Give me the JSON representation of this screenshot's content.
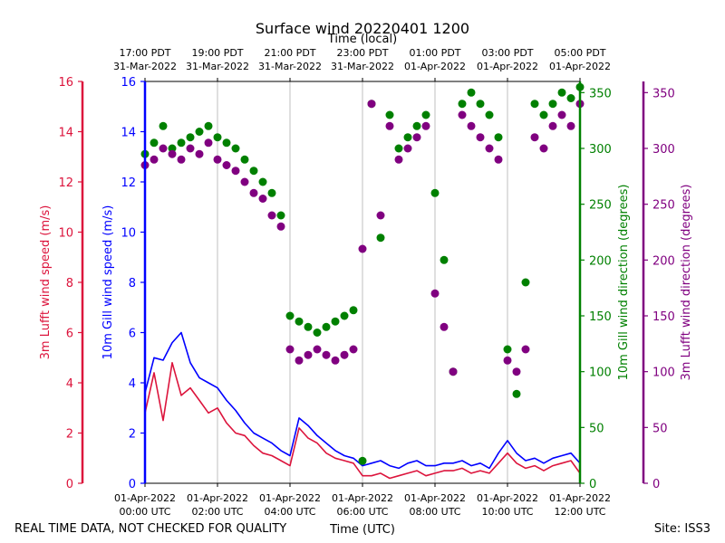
{
  "chart_data": {
    "type": "line",
    "title": "Surface wind 20220401 1200",
    "top_axis_label": "Time (local)",
    "xlabel": "Time (UTC)",
    "footer_left": "REAL TIME DATA, NOT CHECKED FOR QUALITY",
    "footer_right": "Site: ISS3",
    "x_range_hours": [
      0,
      12
    ],
    "x_ticks_utc": [
      {
        "h": 0,
        "line1": "01-Apr-2022",
        "line2": "00:00 UTC"
      },
      {
        "h": 2,
        "line1": "01-Apr-2022",
        "line2": "02:00 UTC"
      },
      {
        "h": 4,
        "line1": "01-Apr-2022",
        "line2": "04:00 UTC"
      },
      {
        "h": 6,
        "line1": "01-Apr-2022",
        "line2": "06:00 UTC"
      },
      {
        "h": 8,
        "line1": "01-Apr-2022",
        "line2": "08:00 UTC"
      },
      {
        "h": 10,
        "line1": "01-Apr-2022",
        "line2": "10:00 UTC"
      },
      {
        "h": 12,
        "line1": "01-Apr-2022",
        "line2": "12:00 UTC"
      }
    ],
    "x_ticks_local": [
      {
        "h": 0,
        "line1": "17:00 PDT",
        "line2": "31-Mar-2022"
      },
      {
        "h": 2,
        "line1": "19:00 PDT",
        "line2": "31-Mar-2022"
      },
      {
        "h": 4,
        "line1": "21:00 PDT",
        "line2": "31-Mar-2022"
      },
      {
        "h": 6,
        "line1": "23:00 PDT",
        "line2": "31-Mar-2022"
      },
      {
        "h": 8,
        "line1": "01:00 PDT",
        "line2": "01-Apr-2022"
      },
      {
        "h": 10,
        "line1": "03:00 PDT",
        "line2": "01-Apr-2022"
      },
      {
        "h": 12,
        "line1": "05:00 PDT",
        "line2": "01-Apr-2022"
      }
    ],
    "axes": {
      "lufft_speed": {
        "label": "3m Lufft wind speed (m/s)",
        "ylim": [
          0,
          16
        ],
        "ticks": [
          0,
          2,
          4,
          6,
          8,
          10,
          12,
          14,
          16
        ],
        "color": "#dc143c"
      },
      "gill_speed": {
        "label": "10m Gill wind speed (m/s)",
        "ylim": [
          0,
          16
        ],
        "ticks": [
          0,
          2,
          4,
          6,
          8,
          10,
          12,
          14,
          16
        ],
        "color": "#0000ff"
      },
      "gill_direction": {
        "label": "10m Gill wind direction (degrees)",
        "ylim": [
          0,
          360
        ],
        "ticks": [
          0,
          50,
          100,
          150,
          200,
          250,
          300,
          350
        ],
        "color": "#008000"
      },
      "lufft_direction": {
        "label": "3m Lufft wind direction (degrees)",
        "ylim": [
          0,
          360
        ],
        "ticks": [
          0,
          50,
          100,
          150,
          200,
          250,
          300,
          350
        ],
        "color": "#800080"
      }
    },
    "series": [
      {
        "name": "10m Gill wind speed",
        "kind": "line",
        "axis": "gill_speed",
        "color": "#0000ff",
        "x": [
          0,
          0.25,
          0.5,
          0.75,
          1,
          1.25,
          1.5,
          1.75,
          2,
          2.25,
          2.5,
          2.75,
          3,
          3.25,
          3.5,
          3.75,
          4,
          4.25,
          4.5,
          4.75,
          5,
          5.25,
          5.5,
          5.75,
          6,
          6.25,
          6.5,
          6.75,
          7,
          7.25,
          7.5,
          7.75,
          8,
          8.25,
          8.5,
          8.75,
          9,
          9.25,
          9.5,
          9.75,
          10,
          10.25,
          10.5,
          10.75,
          11,
          11.25,
          11.5,
          11.75,
          12
        ],
        "y": [
          3.6,
          5.0,
          4.9,
          5.6,
          6.0,
          4.8,
          4.2,
          4.0,
          3.8,
          3.3,
          2.9,
          2.4,
          2.0,
          1.8,
          1.6,
          1.3,
          1.1,
          2.6,
          2.3,
          1.9,
          1.6,
          1.3,
          1.1,
          1.0,
          0.7,
          0.8,
          0.9,
          0.7,
          0.6,
          0.8,
          0.9,
          0.7,
          0.7,
          0.8,
          0.8,
          0.9,
          0.7,
          0.8,
          0.6,
          1.2,
          1.7,
          1.2,
          0.9,
          1.0,
          0.8,
          1.0,
          1.1,
          1.2,
          0.8
        ]
      },
      {
        "name": "3m Lufft wind speed",
        "kind": "line",
        "axis": "lufft_speed",
        "color": "#dc143c",
        "x": [
          0,
          0.25,
          0.5,
          0.75,
          1,
          1.25,
          1.5,
          1.75,
          2,
          2.25,
          2.5,
          2.75,
          3,
          3.25,
          3.5,
          3.75,
          4,
          4.25,
          4.5,
          4.75,
          5,
          5.25,
          5.5,
          5.75,
          6,
          6.25,
          6.5,
          6.75,
          7,
          7.25,
          7.5,
          7.75,
          8,
          8.25,
          8.5,
          8.75,
          9,
          9.25,
          9.5,
          9.75,
          10,
          10.25,
          10.5,
          10.75,
          11,
          11.25,
          11.5,
          11.75,
          12
        ],
        "y": [
          2.8,
          4.4,
          2.5,
          4.8,
          3.5,
          3.8,
          3.3,
          2.8,
          3.0,
          2.4,
          2.0,
          1.9,
          1.5,
          1.2,
          1.1,
          0.9,
          0.7,
          2.2,
          1.8,
          1.6,
          1.2,
          1.0,
          0.9,
          0.8,
          0.3,
          0.3,
          0.4,
          0.2,
          0.3,
          0.4,
          0.5,
          0.3,
          0.4,
          0.5,
          0.5,
          0.6,
          0.4,
          0.5,
          0.4,
          0.8,
          1.2,
          0.8,
          0.6,
          0.7,
          0.5,
          0.7,
          0.8,
          0.9,
          0.4
        ]
      },
      {
        "name": "10m Gill wind direction",
        "kind": "scatter",
        "axis": "gill_direction",
        "color": "#008000",
        "x": [
          0,
          0.25,
          0.5,
          0.75,
          1,
          1.25,
          1.5,
          1.75,
          2,
          2.25,
          2.5,
          2.75,
          3,
          3.25,
          3.5,
          3.75,
          4,
          4.25,
          4.5,
          4.75,
          5,
          5.25,
          5.5,
          5.75,
          6,
          6.25,
          6.5,
          6.75,
          7,
          7.25,
          7.5,
          7.75,
          8,
          8.25,
          8.5,
          8.75,
          9,
          9.25,
          9.5,
          9.75,
          10,
          10.25,
          10.5,
          10.75,
          11,
          11.25,
          11.5,
          11.75,
          12
        ],
        "y": [
          295,
          305,
          320,
          300,
          305,
          310,
          315,
          320,
          310,
          305,
          300,
          290,
          280,
          270,
          260,
          240,
          150,
          145,
          140,
          135,
          140,
          145,
          150,
          155,
          20,
          340,
          220,
          330,
          300,
          310,
          320,
          330,
          260,
          200,
          100,
          340,
          350,
          340,
          330,
          310,
          120,
          80,
          180,
          340,
          330,
          340,
          350,
          345,
          355
        ]
      },
      {
        "name": "3m Lufft wind direction",
        "kind": "scatter",
        "axis": "lufft_direction",
        "color": "#800080",
        "x": [
          0,
          0.25,
          0.5,
          0.75,
          1,
          1.25,
          1.5,
          1.75,
          2,
          2.25,
          2.5,
          2.75,
          3,
          3.25,
          3.5,
          3.75,
          4,
          4.25,
          4.5,
          4.75,
          5,
          5.25,
          5.5,
          5.75,
          6,
          6.25,
          6.5,
          6.75,
          7,
          7.25,
          7.5,
          7.75,
          8,
          8.25,
          8.5,
          8.75,
          9,
          9.25,
          9.5,
          9.75,
          10,
          10.25,
          10.5,
          10.75,
          11,
          11.25,
          11.5,
          11.75,
          12
        ],
        "y": [
          285,
          290,
          300,
          295,
          290,
          300,
          295,
          305,
          290,
          285,
          280,
          270,
          260,
          255,
          240,
          230,
          120,
          110,
          115,
          120,
          115,
          110,
          115,
          120,
          210,
          340,
          240,
          320,
          290,
          300,
          310,
          320,
          170,
          140,
          100,
          330,
          320,
          310,
          300,
          290,
          110,
          100,
          120,
          310,
          300,
          320,
          330,
          320,
          340
        ]
      }
    ]
  }
}
